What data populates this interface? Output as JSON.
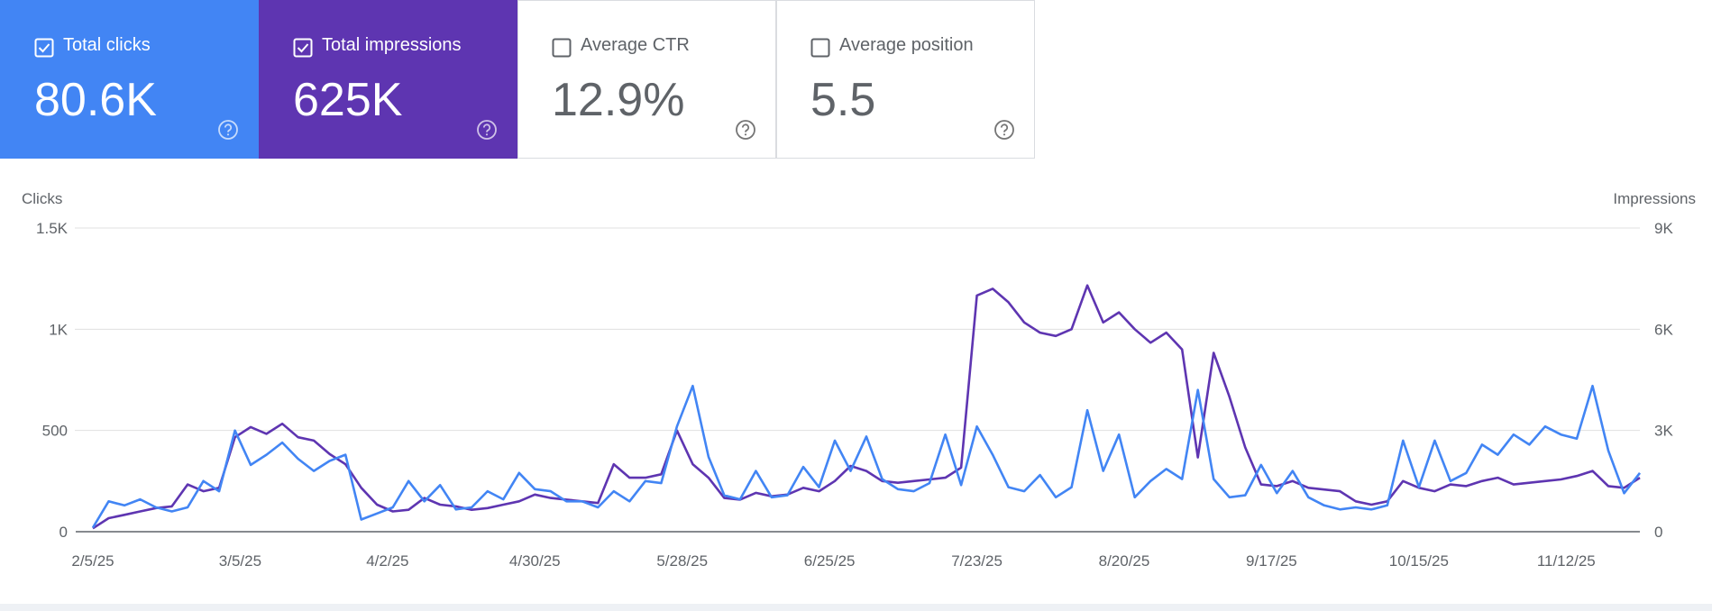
{
  "cards": [
    {
      "label": "Total clicks",
      "value": "80.6K",
      "selected": true,
      "color": "#4285f4"
    },
    {
      "label": "Total impressions",
      "value": "625K",
      "selected": true,
      "color": "#5e35b1"
    },
    {
      "label": "Average CTR",
      "value": "12.9%",
      "selected": false
    },
    {
      "label": "Average position",
      "value": "5.5",
      "selected": false
    }
  ],
  "chart_data": {
    "type": "line",
    "ylabel": "Clicks",
    "y2label": "Impressions",
    "x": [
      "2/5/25",
      "2/8/25",
      "2/11/25",
      "2/14/25",
      "2/17/25",
      "2/20/25",
      "2/23/25",
      "2/26/25",
      "3/1/25",
      "3/4/25",
      "3/7/25",
      "3/10/25",
      "3/13/25",
      "3/16/25",
      "3/19/25",
      "3/22/25",
      "3/25/25",
      "3/28/25",
      "3/31/25",
      "4/3/25",
      "4/6/25",
      "4/9/25",
      "4/12/25",
      "4/15/25",
      "4/18/25",
      "4/21/25",
      "4/24/25",
      "4/27/25",
      "4/30/25",
      "5/3/25",
      "5/6/25",
      "5/9/25",
      "5/12/25",
      "5/15/25",
      "5/18/25",
      "5/21/25",
      "5/24/25",
      "5/27/25",
      "5/30/25",
      "6/2/25",
      "6/5/25",
      "6/8/25",
      "6/11/25",
      "6/14/25",
      "6/17/25",
      "6/20/25",
      "6/23/25",
      "6/26/25",
      "6/29/25",
      "7/2/25",
      "7/5/25",
      "7/8/25",
      "7/11/25",
      "7/14/25",
      "7/17/25",
      "7/20/25",
      "7/23/25",
      "7/26/25",
      "7/29/25",
      "8/1/25",
      "8/4/25",
      "8/7/25",
      "8/10/25",
      "8/13/25",
      "8/16/25",
      "8/19/25",
      "8/22/25",
      "8/25/25",
      "8/28/25",
      "8/31/25",
      "9/3/25",
      "9/6/25",
      "9/9/25",
      "9/12/25",
      "9/15/25",
      "9/18/25",
      "9/21/25",
      "9/24/25",
      "9/27/25",
      "9/30/25",
      "10/3/25",
      "10/6/25",
      "10/9/25",
      "10/12/25",
      "10/15/25",
      "10/18/25",
      "10/21/25",
      "10/24/25",
      "10/27/25",
      "10/30/25",
      "11/2/25",
      "11/5/25",
      "11/8/25",
      "11/11/25",
      "11/14/25",
      "11/17/25",
      "11/20/25",
      "11/23/25",
      "11/26/25"
    ],
    "series": [
      {
        "color": "#5e35b1",
        "axis": "y2",
        "values": [
          100,
          400,
          500,
          600,
          700,
          750,
          1400,
          1200,
          1300,
          2800,
          3100,
          2900,
          3200,
          2800,
          2700,
          2300,
          2000,
          1300,
          800,
          600,
          650,
          1000,
          800,
          750,
          650,
          700,
          800,
          900,
          1100,
          1000,
          950,
          900,
          850,
          2000,
          1600,
          1600,
          1700,
          3000,
          2000,
          1600,
          1000,
          950,
          1150,
          1050,
          1100,
          1300,
          1200,
          1500,
          1950,
          1800,
          1500,
          1450,
          1500,
          1550,
          1600,
          1900,
          7000,
          7200,
          6800,
          6200,
          5900,
          5800,
          6000,
          7300,
          6200,
          6500,
          6000,
          5600,
          5900,
          5400,
          2200,
          5300,
          4000,
          2500,
          1400,
          1350,
          1500,
          1300,
          1250,
          1200,
          900,
          800,
          900,
          1500,
          1300,
          1200,
          1400,
          1350,
          1500,
          1600,
          1400,
          1450,
          1500,
          1550,
          1650,
          1800,
          1350,
          1300,
          1600
        ]
      },
      {
        "color": "#4285f4",
        "values": [
          20,
          150,
          130,
          160,
          120,
          100,
          120,
          250,
          200,
          500,
          330,
          380,
          440,
          360,
          300,
          350,
          380,
          60,
          90,
          120,
          250,
          150,
          230,
          110,
          120,
          200,
          160,
          290,
          210,
          200,
          150,
          150,
          120,
          200,
          150,
          250,
          240,
          520,
          720,
          370,
          180,
          160,
          300,
          170,
          180,
          320,
          220,
          450,
          300,
          470,
          260,
          210,
          200,
          240,
          480,
          230,
          520,
          380,
          220,
          200,
          280,
          170,
          220,
          600,
          300,
          480,
          170,
          250,
          310,
          260,
          700,
          260,
          170,
          180,
          330,
          190,
          300,
          170,
          130,
          110,
          120,
          110,
          130,
          450,
          220,
          450,
          250,
          290,
          430,
          380,
          480,
          430,
          520,
          480,
          460,
          720,
          400,
          190,
          290
        ]
      }
    ],
    "xlim": [
      "2/5/25",
      "11/26/25"
    ],
    "xticks": [
      "2/5/25",
      "3/5/25",
      "4/2/25",
      "4/30/25",
      "5/28/25",
      "6/25/25",
      "7/23/25",
      "8/20/25",
      "9/17/25",
      "10/15/25",
      "11/12/25"
    ],
    "ylim": [
      0,
      1500
    ],
    "yticks": [
      0,
      500,
      {
        "value": 1000,
        "label": "1K"
      },
      {
        "value": 1500,
        "label": "1.5K"
      }
    ],
    "y2lim": [
      0,
      9000
    ],
    "y2ticks": [
      0,
      {
        "value": 3000,
        "label": "3K"
      },
      {
        "value": 6000,
        "label": "6K"
      },
      {
        "value": 9000,
        "label": "9K"
      }
    ],
    "grid": true
  }
}
